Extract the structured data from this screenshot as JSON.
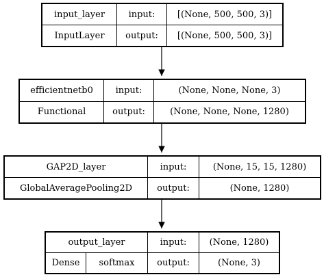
{
  "nodes": [
    {
      "name": "input_layer",
      "type": "InputLayer",
      "input_label": "input:",
      "input_shape": "[(None, 500, 500, 3)]",
      "output_label": "output:",
      "output_shape": "[(None, 500, 500, 3)]"
    },
    {
      "name": "efficientnetb0",
      "type": "Functional",
      "input_label": "input:",
      "input_shape": "(None, None, None, 3)",
      "output_label": "output:",
      "output_shape": "(None, None, None, 1280)"
    },
    {
      "name": "GAP2D_layer",
      "type": "GlobalAveragePooling2D",
      "input_label": "input:",
      "input_shape": "(None, 15, 15, 1280)",
      "output_label": "output:",
      "output_shape": "(None, 1280)"
    },
    {
      "name": "output_layer",
      "type": "Dense",
      "activation": "softmax",
      "input_label": "input:",
      "input_shape": "(None, 1280)",
      "output_label": "output:",
      "output_shape": "(None, 3)"
    }
  ]
}
